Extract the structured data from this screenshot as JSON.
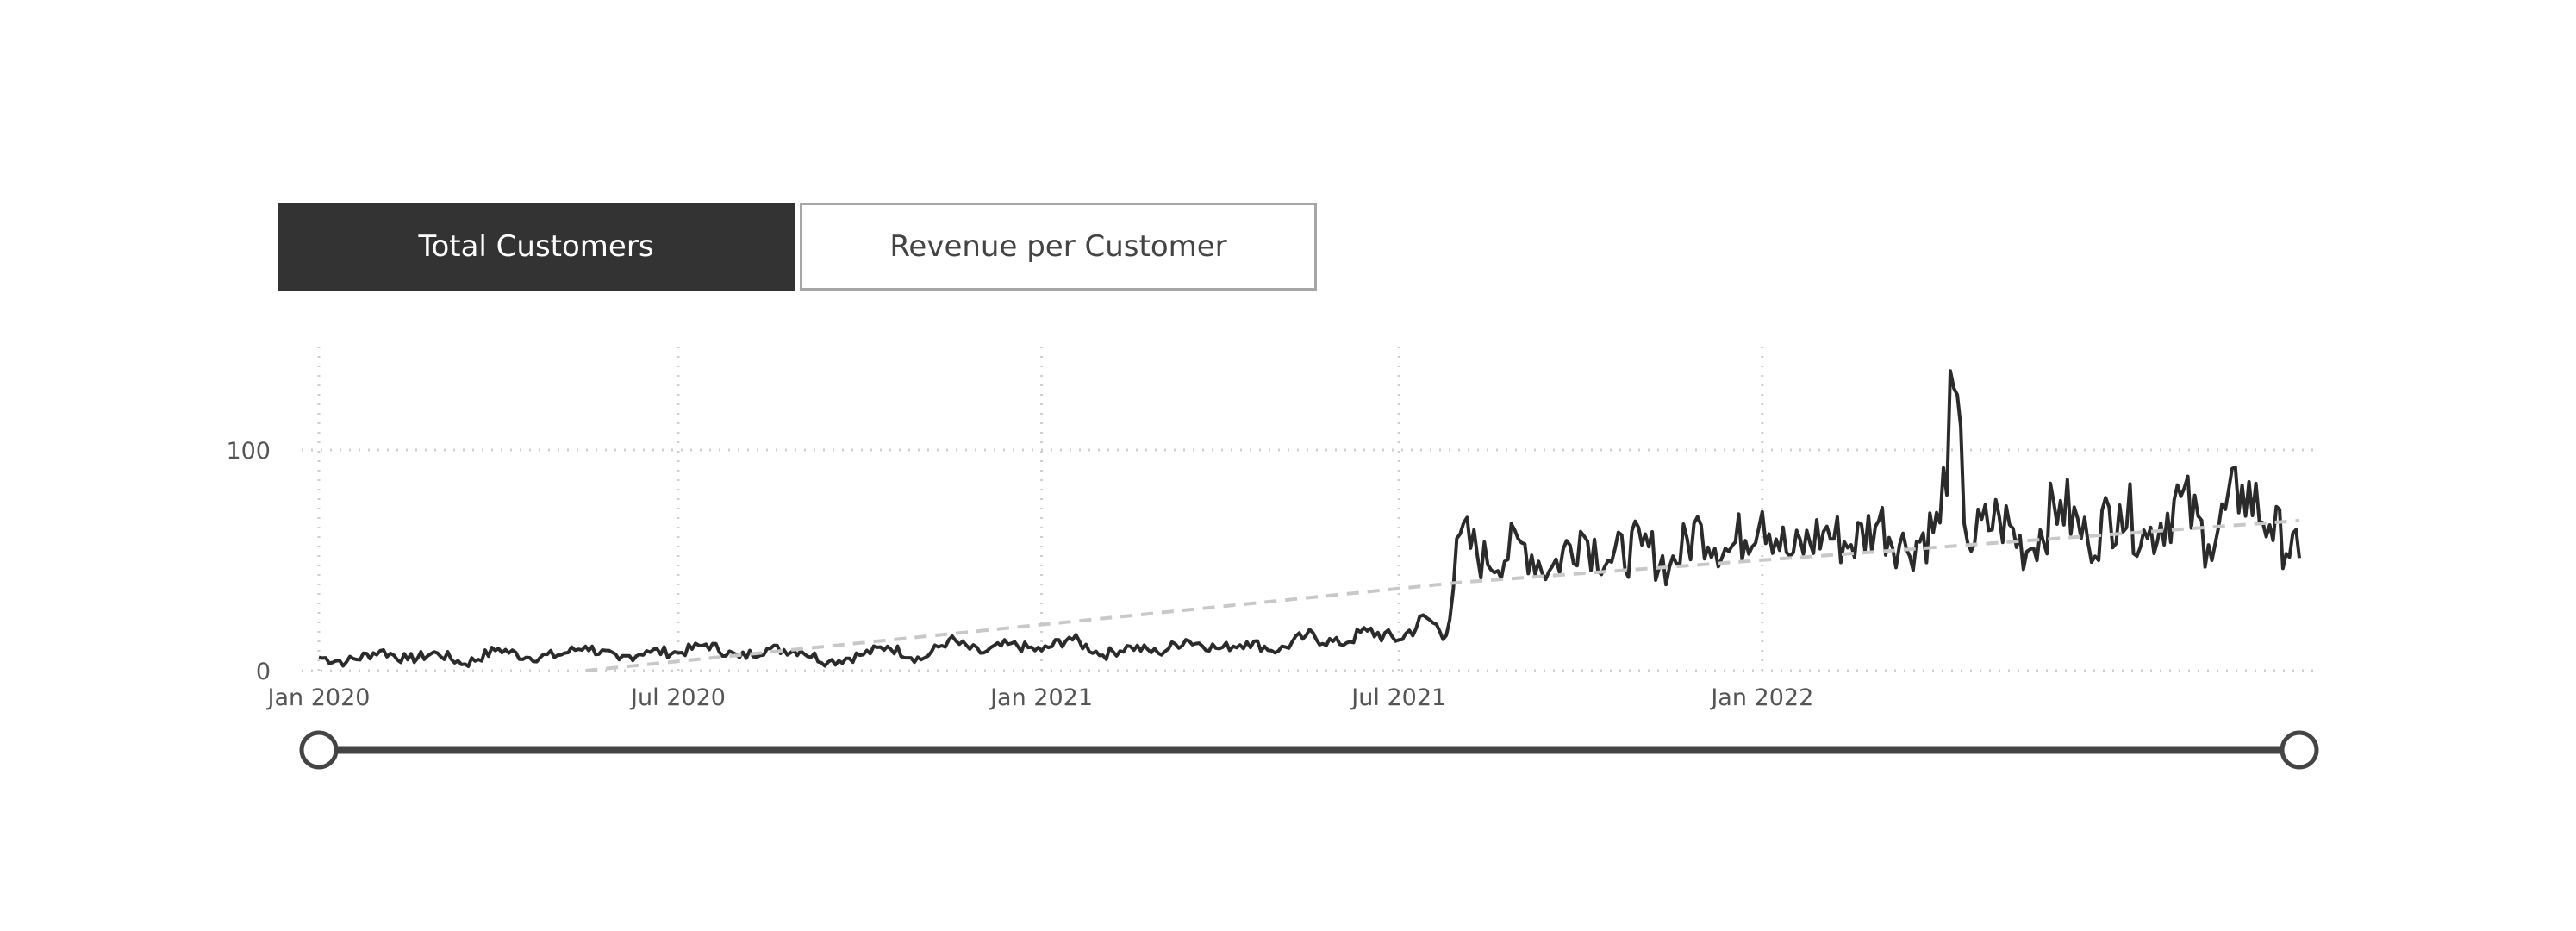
{
  "tabs": [
    {
      "label": "Total Customers",
      "active": true
    },
    {
      "label": "Revenue per Customer",
      "active": false
    }
  ],
  "colors": {
    "line": "#2b2b2b",
    "trend": "#c8c8c8",
    "grid": "#cfcfcf",
    "active_tab_bg": "#333333",
    "slider": "#444444"
  },
  "range_slider": {
    "start": "2020-01-01",
    "end": "2022-09-30"
  },
  "chart_data": {
    "type": "line",
    "title": "",
    "xlabel": "",
    "ylabel": "",
    "x_range": [
      "2020-01-01",
      "2022-09-30"
    ],
    "ylim": [
      0,
      145
    ],
    "y_ticks": [
      {
        "value": 0,
        "label": "0"
      },
      {
        "value": 100,
        "label": "100"
      }
    ],
    "x_ticks": [
      {
        "date": "2020-01-01",
        "label": "Jan 2020"
      },
      {
        "date": "2020-07-01",
        "label": "Jul 2020"
      },
      {
        "date": "2021-01-01",
        "label": "Jan 2021"
      },
      {
        "date": "2021-07-01",
        "label": "Jul 2021"
      },
      {
        "date": "2022-01-01",
        "label": "Jan 2022"
      }
    ],
    "grid": {
      "vertical": true,
      "horizontal": true,
      "style": "dotted"
    },
    "legend": "none",
    "series": [
      {
        "style": "solid",
        "x": [
          "2020-01-01",
          "2020-01-15",
          "2020-02-01",
          "2020-02-15",
          "2020-03-01",
          "2020-03-15",
          "2020-04-01",
          "2020-04-15",
          "2020-05-01",
          "2020-05-15",
          "2020-06-01",
          "2020-06-15",
          "2020-07-01",
          "2020-07-15",
          "2020-08-01",
          "2020-08-15",
          "2020-09-01",
          "2020-09-15",
          "2020-10-01",
          "2020-10-15",
          "2020-11-01",
          "2020-11-15",
          "2020-12-01",
          "2020-12-15",
          "2021-01-01",
          "2021-01-15",
          "2021-02-01",
          "2021-02-15",
          "2021-03-01",
          "2021-03-15",
          "2021-04-01",
          "2021-04-15",
          "2021-05-01",
          "2021-05-15",
          "2021-06-01",
          "2021-06-15",
          "2021-07-01",
          "2021-07-15",
          "2021-07-25",
          "2021-08-01",
          "2021-08-15",
          "2021-09-01",
          "2021-09-15",
          "2021-10-01",
          "2021-10-15",
          "2021-11-01",
          "2021-11-15",
          "2021-12-01",
          "2021-12-15",
          "2022-01-01",
          "2022-01-15",
          "2022-02-01",
          "2022-02-15",
          "2022-03-01",
          "2022-03-15",
          "2022-04-01",
          "2022-04-08",
          "2022-04-15",
          "2022-05-01",
          "2022-05-15",
          "2022-06-01",
          "2022-06-15",
          "2022-07-01",
          "2022-07-15",
          "2022-08-01",
          "2022-08-15",
          "2022-09-01",
          "2022-09-15",
          "2022-09-30"
        ],
        "y": [
          6,
          4,
          9,
          5,
          8,
          3,
          10,
          6,
          7,
          11,
          5,
          9,
          8,
          12,
          6,
          10,
          9,
          4,
          7,
          11,
          5,
          14,
          8,
          12,
          9,
          15,
          7,
          11,
          8,
          14,
          10,
          13,
          9,
          16,
          12,
          18,
          14,
          24,
          16,
          62,
          48,
          58,
          45,
          63,
          50,
          57,
          47,
          66,
          54,
          72,
          52,
          63,
          57,
          68,
          55,
          67,
          128,
          58,
          70,
          54,
          77,
          58,
          75,
          60,
          79,
          57,
          84,
          66,
          51
        ]
      },
      {
        "style": "dashed",
        "name_hidden": "trend",
        "x": [
          "2020-05-15",
          "2021-08-01",
          "2022-09-30"
        ],
        "y": [
          0,
          40,
          68
        ]
      }
    ]
  }
}
